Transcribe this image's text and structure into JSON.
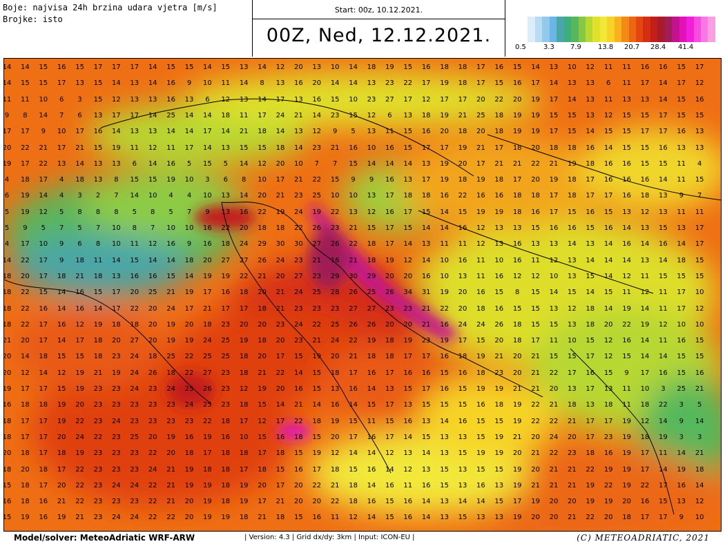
{
  "header": {
    "color_line": "Boje: najvisa 24h brzina udara vjetra [m/s]",
    "numbers_line": "Brojke: isto",
    "start_line": "Start: 00z, 10.12.2021.",
    "valid_line": "00Z, Ned, 12.12.2021."
  },
  "legend": {
    "colors": [
      "#ffffff",
      "#dcecf8",
      "#b9dcf3",
      "#94c9ee",
      "#6bb6e6",
      "#4aa6a8",
      "#3fae7e",
      "#55b85c",
      "#86c843",
      "#b7d733",
      "#e0e12a",
      "#f2e83a",
      "#f7d327",
      "#f7b21d",
      "#f28b16",
      "#ec6712",
      "#e54611",
      "#d52e12",
      "#c21f1a",
      "#ab1a2a",
      "#a01e57",
      "#c2138c",
      "#e012b8",
      "#f21fd9",
      "#f64ae0",
      "#f978e3",
      "#fb9fe3"
    ],
    "labels": [
      "0.5",
      "3.3",
      "7.9",
      "13.8",
      "20.7",
      "28.4",
      "41.4"
    ]
  },
  "grid": {
    "rows": [
      "14 14 15 16 15 17 17 17 14 15 15 14 15 13 14 12 20 13 10 14 18 19 15 16 18 18 17 16 15 14 13 10 12 11 11 16 16 15 17",
      "14 15 15 17 13 15 14 13 14 16 9 10 11 14 8 13 16 20 14 14 13 23 22 17 19 18 17 15 16 17 14 13 13 6 11 17 14 17 12",
      "11 11 10 6 3 15 12 13 13 16 13 6 12 13 14 17 13 16 15 10 23 27 17 12 17 17 20 22 20 19 17 14 13 11 13 13 14 15 16",
      "9 8 14 7 6 13 17 17 14 25 14 14 18 11 17 24 21 14 23 15 12 6 13 18 19 21 25 18 19 19 15 15 13 12 15 15 17 15 15",
      "17 17 9 10 17 16 14 13 13 14 14 17 14 21 18 14 13 12 9 5 13 11 15 16 20 18 20 18 19 19 17 15 14 15 15 17 17 16 13",
      "20 22 21 17 21 15 19 11 12 11 17 14 13 15 15 18 14 23 21 16 10 16 15 17 17 19 21 17 18 20 18 18 16 14 15 15 16 13 13",
      "19 17 22 13 14 13 13 6 14 16 5 15 5 14 12 20 10 7 7 15 14 14 14 13 19 20 17 21 21 22 21 19 18 16 16 15 15 11 4",
      "4 18 17 4 18 13 8 15 15 19 10 3 6 8 10 17 21 22 15 9 9 16 13 17 19 18 19 18 17 20 19 18 17 16 16 16 14 11 15",
      "6 19 14 4 3 2 7 14 10 4 4 10 13 14 20 21 23 25 10 10 13 17 18 18 16 22 16 16 18 18 17 18 17 17 16 18 13 9 7",
      "5 19 12 5 8 8 8 5 8 5 7 9 13 16 22 19 24 19 22 13 12 16 17 15 14 15 19 19 18 16 17 15 16 15 13 12 13 11 11",
      "5 9 5 7 5 7 10 8 7 10 10 16 22 20 18 18 22 26 23 21 15 17 15 14 14 16 12 13 13 15 16 16 15 16 14 13 15 13 17",
      "4 17 10 9 6 8 10 11 12 16 9 16 18 24 29 30 30 27 26 22 18 17 14 13 11 11 12 13 16 13 13 14 13 14 16 14 16 14 17",
      "14 22 17 9 18 11 14 15 14 14 18 20 27 27 26 24 23 21 16 21 18 19 12 14 10 16 11 10 16 11 12 13 14 14 14 13 14 18 15",
      "18 20 17 18 21 18 13 16 16 15 14 19 19 22 21 20 27 23 29 30 29 20 20 16 10 13 11 16 12 12 10 13 15 14 12 11 15 15 15",
      "18 22 15 14 16 15 17 20 25 21 19 17 16 18 20 21 24 25 28 26 25 26 34 31 19 20 16 15 8 15 14 15 14 15 11 12 11 17 10",
      "18 22 16 14 16 14 17 22 20 24 17 21 17 17 18 21 23 23 23 27 27 23 23 21 22 20 18 16 15 15 13 12 18 14 19 14 11 17 12",
      "18 22 17 16 12 19 18 18 20 19 20 18 23 20 20 23 24 22 25 26 26 20 20 21 16 24 24 26 18 15 15 13 18 20 22 19 12 10 10",
      "21 20 17 14 17 18 20 27 20 19 19 24 25 19 18 20 23 21 24 22 19 18 19 23 19 17 15 20 18 17 11 10 15 12 16 14 11 16 15",
      "20 14 18 15 15 18 23 24 18 25 22 25 25 18 20 17 15 19 20 21 18 18 17 17 16 18 19 21 20 21 15 15 17 12 15 14 14 15 15",
      "20 12 14 12 19 21 19 24 26 18 22 27 23 18 21 22 14 15 18 17 16 17 16 16 15 16 18 23 20 21 22 17 16 15 9 17 16 15 16",
      "19 17 17 15 19 23 23 24 23 24 25 26 23 12 19 20 16 15 13 16 14 13 15 17 16 15 19 19 21 21 20 13 17 13 11 10 3 25 21",
      "16 18 18 19 20 23 23 23 23 23 24 25 23 18 15 14 21 14 16 14 15 17 13 15 15 15 16 18 19 22 21 18 13 18 11 18 22 3 5",
      "18 17 17 19 22 23 24 23 23 23 23 22 18 17 12 17 22 18 19 15 11 15 16 13 14 16 15 15 19 22 22 21 17 17 19 12 14 9 14",
      "18 17 17 20 24 22 23 25 20 19 16 19 16 10 15 16 18 15 20 17 16 17 14 15 13 13 15 19 21 20 24 20 17 23 19 18 19 3 3",
      "20 18 17 18 19 23 23 23 22 20 18 17 18 18 17 18 15 19 12 14 14 12 13 14 13 15 19 19 20 21 22 23 18 16 19 17 11 14 21",
      "18 20 18 17 22 23 23 23 24 21 19 18 18 17 18 15 16 17 18 15 16 14 12 13 15 13 15 15 19 20 21 21 22 19 19 17 14 19 18",
      "15 18 17 20 22 23 24 24 22 21 19 19 18 19 20 17 20 22 21 18 14 16 11 16 15 13 16 13 19 21 21 21 19 22 19 22 17 16 14",
      "16 18 16 21 22 23 23 23 22 21 20 19 18 19 17 21 20 20 22 18 16 15 16 14 13 14 14 15 17 19 20 20 19 19 20 16 15 13 12",
      "15 19 16 19 21 23 24 24 22 22 20 19 19 18 21 18 15 16 11 12 14 15 16 14 13 15 13 13 19 20 20 21 22 20 18 17 17 9 10"
    ]
  },
  "footer": {
    "model": "Model/solver: MeteoAdriatic WRF-ARW",
    "meta": "| Version: 4.3 | Grid dx/dy: 3km | Input: ICON-EU |",
    "copyright": "(C) METEOADRIATIC, 2021"
  }
}
